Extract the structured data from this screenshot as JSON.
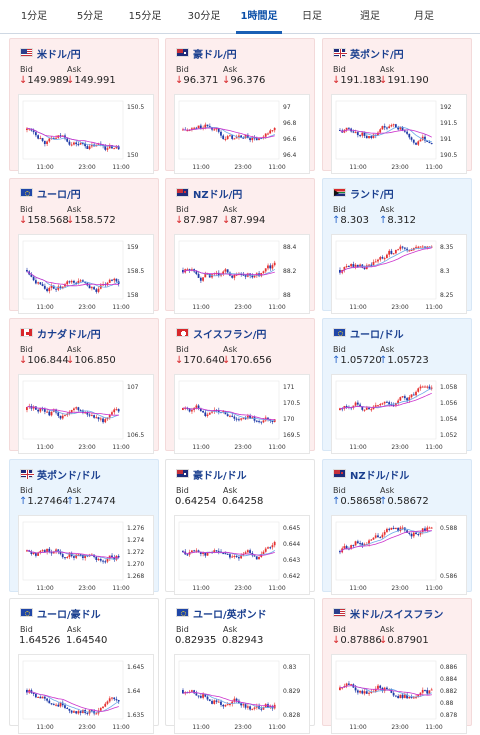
{
  "tabs": [
    "1分足",
    "5分足",
    "15分足",
    "30分足",
    "1時間足",
    "日足",
    "週足",
    "月足"
  ],
  "active_tab": 4,
  "cards": [
    {
      "pair": "米ドル/円",
      "flag": "us",
      "trend": "down",
      "bid_label": "Bid",
      "ask_label": "Ask",
      "bid": "149.989",
      "ask": "149.991",
      "dir": "down",
      "y_ticks": [
        "150.5",
        "150"
      ],
      "x_ticks": [
        "11:00",
        "23:00",
        "11:00"
      ]
    },
    {
      "pair": "豪ドル/円",
      "flag": "au",
      "trend": "down",
      "bid_label": "Bid",
      "ask_label": "Ask",
      "bid": "96.371",
      "ask": "96.376",
      "dir": "down",
      "y_ticks": [
        "97",
        "96.8",
        "96.6",
        "96.4"
      ],
      "x_ticks": [
        "11:00",
        "23:00",
        "11:00"
      ]
    },
    {
      "pair": "英ポンド/円",
      "flag": "gb",
      "trend": "down",
      "bid_label": "Bid",
      "ask_label": "Ask",
      "bid": "191.183",
      "ask": "191.190",
      "dir": "down",
      "y_ticks": [
        "192",
        "191.5",
        "191",
        "190.5"
      ],
      "x_ticks": [
        "11:00",
        "23:00",
        "11:00"
      ]
    },
    {
      "pair": "ユーロ/円",
      "flag": "eu",
      "trend": "down",
      "bid_label": "Bid",
      "ask_label": "Ask",
      "bid": "158.568",
      "ask": "158.572",
      "dir": "down",
      "y_ticks": [
        "159",
        "158.5",
        "158"
      ],
      "x_ticks": [
        "11:00",
        "23:00",
        "11:00"
      ]
    },
    {
      "pair": "NZドル/円",
      "flag": "nz",
      "trend": "down",
      "bid_label": "Bid",
      "ask_label": "Ask",
      "bid": "87.987",
      "ask": "87.994",
      "dir": "down",
      "y_ticks": [
        "88.4",
        "88.2",
        "88"
      ],
      "x_ticks": [
        "11:00",
        "23:00",
        "11:00"
      ]
    },
    {
      "pair": "ランド/円",
      "flag": "za",
      "trend": "up",
      "bid_label": "Bid",
      "ask_label": "Ask",
      "bid": "8.303",
      "ask": "8.312",
      "dir": "up",
      "y_ticks": [
        "8.35",
        "8.3",
        "8.25"
      ],
      "x_ticks": [
        "11:00",
        "23:00",
        "11:00"
      ]
    },
    {
      "pair": "カナダドル/円",
      "flag": "ca",
      "trend": "down",
      "bid_label": "Bid",
      "ask_label": "Ask",
      "bid": "106.844",
      "ask": "106.850",
      "dir": "down",
      "y_ticks": [
        "107",
        "106.5"
      ],
      "x_ticks": [
        "11:00",
        "23:00",
        "11:00"
      ]
    },
    {
      "pair": "スイスフラン/円",
      "flag": "ch",
      "trend": "down",
      "bid_label": "Bid",
      "ask_label": "Ask",
      "bid": "170.640",
      "ask": "170.656",
      "dir": "down",
      "y_ticks": [
        "171",
        "170.5",
        "170",
        "169.5"
      ],
      "x_ticks": [
        "11:00",
        "23:00",
        "11:00"
      ]
    },
    {
      "pair": "ユーロ/ドル",
      "flag": "eu",
      "trend": "up",
      "bid_label": "Bid",
      "ask_label": "Ask",
      "bid": "1.05720",
      "ask": "1.05723",
      "dir": "up",
      "y_ticks": [
        "1.058",
        "1.056",
        "1.054",
        "1.052"
      ],
      "x_ticks": [
        "11:00",
        "23:00",
        "11:00"
      ]
    },
    {
      "pair": "英ポンド/ドル",
      "flag": "gb",
      "trend": "up",
      "bid_label": "Bid",
      "ask_label": "Ask",
      "bid": "1.27464",
      "ask": "1.27474",
      "dir": "up",
      "y_ticks": [
        "1.276",
        "1.274",
        "1.272",
        "1.270",
        "1.268"
      ],
      "x_ticks": [
        "11:00",
        "23:00",
        "11:00"
      ]
    },
    {
      "pair": "豪ドル/ドル",
      "flag": "au",
      "trend": "neutral",
      "bid_label": "Bid",
      "ask_label": "Ask",
      "bid": "0.64254",
      "ask": "0.64258",
      "dir": "none",
      "y_ticks": [
        "0.645",
        "0.644",
        "0.643",
        "0.642"
      ],
      "x_ticks": [
        "11:00",
        "23:00",
        "11:00"
      ]
    },
    {
      "pair": "NZドル/ドル",
      "flag": "nz",
      "trend": "up",
      "bid_label": "Bid",
      "ask_label": "Ask",
      "bid": "0.58658",
      "ask": "0.58672",
      "dir": "up",
      "y_ticks": [
        "0.588",
        "0.586"
      ],
      "x_ticks": [
        "11:00",
        "23:00",
        "11:00"
      ]
    },
    {
      "pair": "ユーロ/豪ドル",
      "flag": "eu",
      "trend": "neutral",
      "bid_label": "Bid",
      "ask_label": "Ask",
      "bid": "1.64526",
      "ask": "1.64540",
      "dir": "none",
      "y_ticks": [
        "1.645",
        "1.64",
        "1.635"
      ],
      "x_ticks": [
        "11:00",
        "23:00",
        "11:00"
      ]
    },
    {
      "pair": "ユーロ/英ポンド",
      "flag": "eu",
      "trend": "neutral",
      "bid_label": "Bid",
      "ask_label": "Ask",
      "bid": "0.82935",
      "ask": "0.82943",
      "dir": "none",
      "y_ticks": [
        "0.83",
        "0.829",
        "0.828"
      ],
      "x_ticks": [
        "11:00",
        "23:00",
        "11:00"
      ]
    },
    {
      "pair": "米ドル/スイスフラン",
      "flag": "us",
      "trend": "down",
      "bid_label": "Bid",
      "ask_label": "Ask",
      "bid": "0.87886",
      "ask": "0.87901",
      "dir": "down",
      "y_ticks": [
        "0.886",
        "0.884",
        "0.882",
        "0.88",
        "0.878"
      ],
      "x_ticks": [
        "11:00",
        "23:00",
        "11:00"
      ]
    }
  ],
  "colors": {
    "up_candle": "#e53232",
    "down_candle": "#1f3aa8",
    "ma_line": "#cc33cc",
    "ma_line2": "#6da9e8"
  }
}
